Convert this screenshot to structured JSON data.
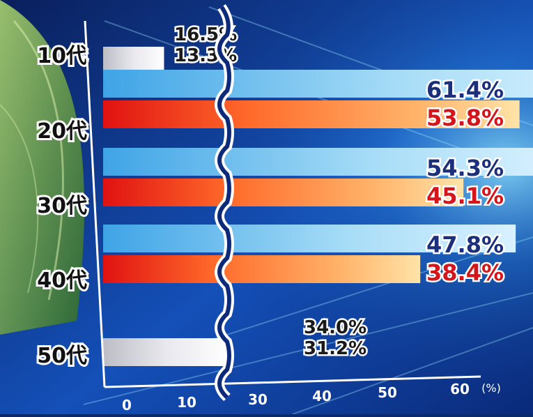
{
  "chart_data": {
    "type": "bar",
    "orientation": "horizontal",
    "categories": [
      "10代",
      "20代",
      "30代",
      "40代",
      "50代"
    ],
    "series": [
      {
        "values": [
          16.5,
          61.4,
          54.3,
          47.8,
          34.0
        ],
        "color": "#7ec8f2",
        "label_color": "#1c2f7a"
      },
      {
        "values": [
          13.3,
          53.8,
          45.1,
          38.4,
          31.2
        ],
        "color": "#ff6a2a",
        "label_color": "#d4151b"
      }
    ],
    "value_labels": [
      [
        "16.5%",
        "61.4%",
        "54.3%",
        "47.8%",
        "34.0%"
      ],
      [
        "13.3%",
        "53.8%",
        "45.1%",
        "38.4%",
        "31.2%"
      ]
    ],
    "x_ticks": [
      "0",
      "10",
      "30",
      "40",
      "50",
      "60"
    ],
    "x_unit": "(%)",
    "axis_break": true,
    "grid": false,
    "legend": "none"
  }
}
